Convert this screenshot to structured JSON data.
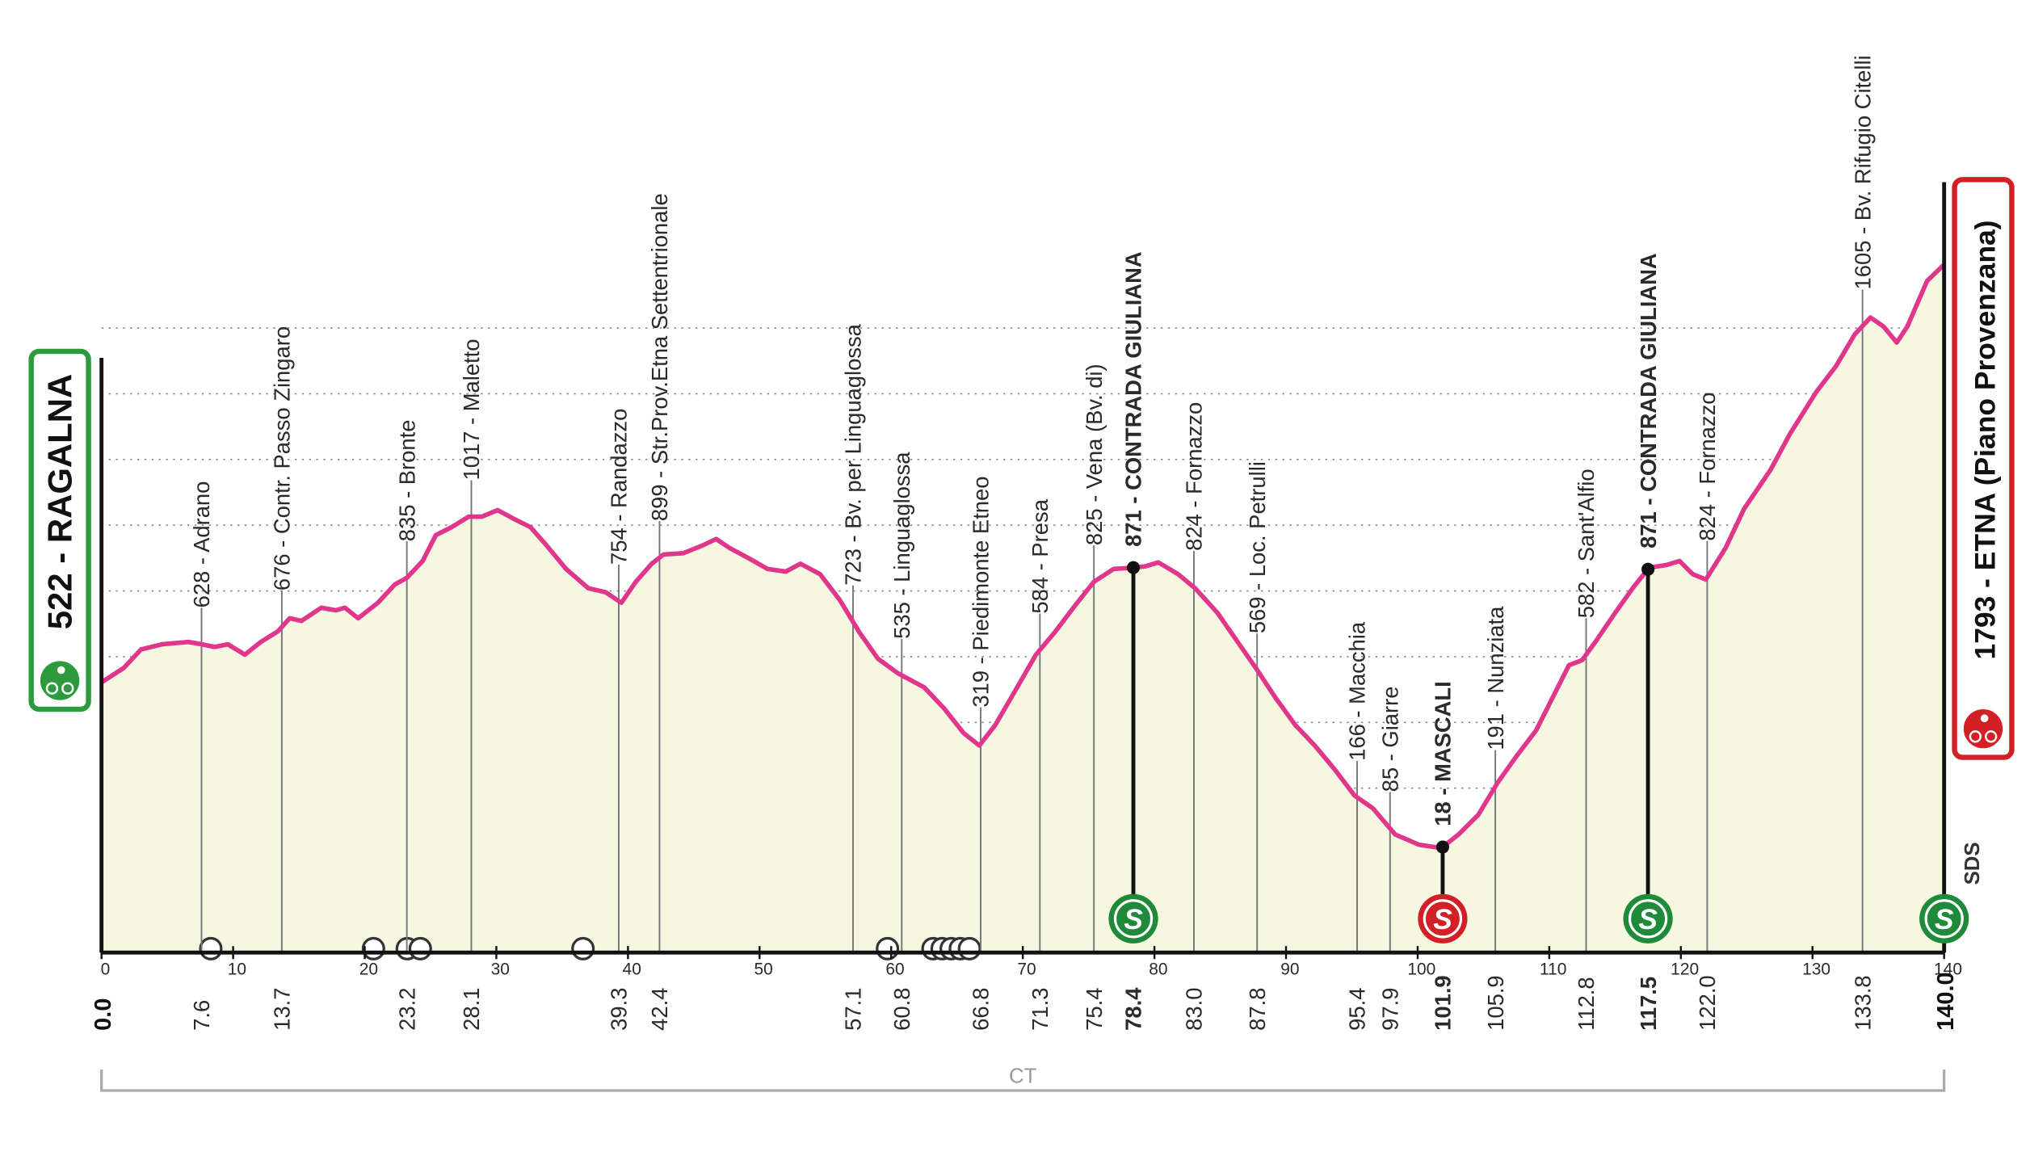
{
  "chart_data": {
    "type": "elevation-profile",
    "color": "#e0368c",
    "fill": "#f5f7e1",
    "grid": true,
    "xlim": [
      0,
      140
    ],
    "ylim": [
      -300,
      2000
    ],
    "xticks": [
      0,
      10,
      20,
      30,
      40,
      50,
      60,
      70,
      80,
      90,
      100,
      110,
      120,
      130,
      140
    ],
    "yticks": [
      0,
      200,
      400,
      600,
      800,
      1000,
      1200,
      1400,
      1600
    ],
    "x": [
      0,
      1.7,
      3,
      4.6,
      6.6,
      7.6,
      8.6,
      9.6,
      10.9,
      12.1,
      13.4,
      14.3,
      15.2,
      16.7,
      17.8,
      18.5,
      19.5,
      21,
      22.3,
      23.2,
      24.4,
      25.4,
      26.6,
      27.9,
      28.9,
      30.1,
      31.4,
      32.6,
      33.8,
      35.3,
      37,
      38.3,
      39.5,
      40.6,
      41.8,
      42.7,
      44.2,
      45.7,
      46.7,
      47.7,
      49.2,
      50.6,
      52,
      53.1,
      54.6,
      56.1,
      57.6,
      59,
      60.5,
      62.5,
      64,
      65.5,
      66.7,
      67.9,
      69.4,
      71,
      72.4,
      73.9,
      75.4,
      76.9,
      78.4,
      79.3,
      80.3,
      81.8,
      83.1,
      84.8,
      86.3,
      87.7,
      89.2,
      90.7,
      92.2,
      93.7,
      95.2,
      96.6,
      98.3,
      100.1,
      101.8,
      103.1,
      104.6,
      106.1,
      107.5,
      109,
      110.5,
      111.5,
      112.5,
      113.5,
      115,
      116.4,
      117.6,
      118.9,
      119.9,
      120.9,
      121.9,
      123.4,
      124.8,
      126.8,
      128.3,
      130.3,
      131.8,
      133.2,
      134.4,
      135.4,
      136.4,
      137.2,
      138.7,
      140
    ],
    "values": [
      522,
      566,
      622,
      638,
      645,
      638,
      630,
      638,
      606,
      645,
      677,
      717,
      709,
      749,
      741,
      749,
      717,
      764,
      820,
      840,
      891,
      970,
      994,
      1026,
      1026,
      1046,
      1018,
      994,
      939,
      867,
      808,
      796,
      764,
      828,
      883,
      911,
      915,
      939,
      958,
      931,
      899,
      867,
      859,
      883,
      851,
      772,
      673,
      594,
      550,
      507,
      444,
      368,
      330,
      392,
      495,
      606,
      673,
      752,
      828,
      867,
      871,
      875,
      887,
      851,
      808,
      733,
      646,
      566,
      475,
      392,
      329,
      257,
      178,
      139,
      59,
      28,
      18,
      59,
      119,
      218,
      297,
      376,
      495,
      574,
      590,
      645,
      733,
      812,
      871,
      879,
      891,
      851,
      835,
      931,
      1050,
      1168,
      1279,
      1406,
      1485,
      1580,
      1632,
      1604,
      1556,
      1604,
      1743,
      1793
    ],
    "start": {
      "km": {
        "value": 0,
        "label": "0.0"
      },
      "label": "522 - RAGALNA",
      "color": "#2e9a3e"
    },
    "finish": {
      "km": {
        "value": 140,
        "label": "140.0"
      },
      "label": "1793 - ETNA (Piano Provenzana)",
      "color": "#d32027",
      "sprint": "#1f8a3a"
    },
    "sprint_symbol": "S",
    "waypoints": [
      {
        "km": 7.6,
        "label": "628 - Adrano"
      },
      {
        "km": 13.7,
        "label": "676 - Contr. Passo Zingaro"
      },
      {
        "km": 23.2,
        "label": "835 - Bronte"
      },
      {
        "km": 28.1,
        "label": "1017 - Maletto"
      },
      {
        "km": 39.3,
        "label": "754 - Randazzo"
      },
      {
        "km": 42.4,
        "label": "899 - Str.Prov.Etna Settentrionale"
      },
      {
        "km": 57.1,
        "label": "723 - Bv. per Linguaglossa"
      },
      {
        "km": 60.8,
        "label": "535 - Linguaglossa"
      },
      {
        "km": 66.8,
        "label": "319 - Piedimonte Etneo"
      },
      {
        "km": 71.3,
        "label": "584 - Presa"
      },
      {
        "km": 75.4,
        "label": "825 - Vena (Bv. di)"
      },
      {
        "km": 78.4,
        "label": "871 - CONTRADA GIULIANA",
        "major": true,
        "sprint": "#1f8a3a"
      },
      {
        "km": {
          "value": 83,
          "label": "83.0"
        },
        "label": "824 - Fornazzo"
      },
      {
        "km": 87.8,
        "label": "569 - Loc. Petrulli"
      },
      {
        "km": 95.4,
        "label": "166 - Macchia"
      },
      {
        "km": 97.9,
        "label": "85 - Giarre"
      },
      {
        "km": 101.9,
        "label": "18 - MASCALI",
        "major": true,
        "sprint": "#d32027"
      },
      {
        "km": 105.9,
        "label": "191 - Nunziata"
      },
      {
        "km": 112.8,
        "label": "582 - Sant'Alfio"
      },
      {
        "km": 117.5,
        "label": "871 - CONTRADA GIULIANA",
        "major": true,
        "sprint": "#1f8a3a"
      },
      {
        "km": {
          "value": 122,
          "label": "122.0"
        },
        "label": "824 - Fornazzo"
      },
      {
        "km": 133.8,
        "label": "1605 - Bv. Rifugio Citelli"
      }
    ],
    "province": {
      "label": "CT",
      "from": 0,
      "to": 140
    },
    "logo": "SDS"
  }
}
